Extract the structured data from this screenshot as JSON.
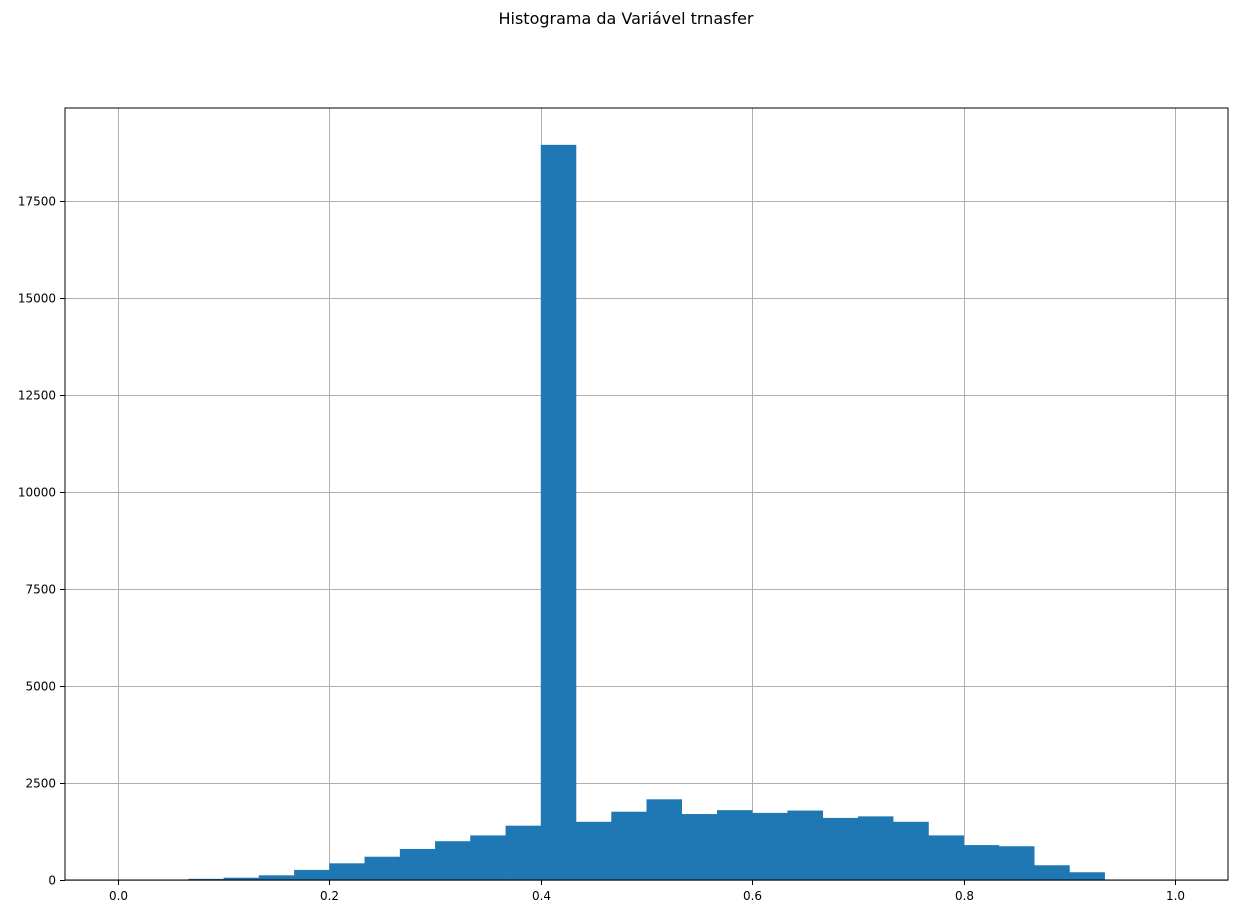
{
  "chart_data": {
    "type": "bar",
    "title": "Histograma da Variável trnasfer",
    "xlabel": "",
    "ylabel": "",
    "xlim": [
      -0.05,
      1.05
    ],
    "ylim": [
      0,
      19900
    ],
    "grid": true,
    "bar_color": "#1f77b4",
    "grid_color": "#b0b0b0",
    "bin_edges": [
      0.0,
      0.0333,
      0.0667,
      0.1,
      0.1333,
      0.1667,
      0.2,
      0.2333,
      0.2667,
      0.3,
      0.3333,
      0.3667,
      0.4,
      0.4333,
      0.4667,
      0.5,
      0.5333,
      0.5667,
      0.6,
      0.6333,
      0.6667,
      0.7,
      0.7333,
      0.7667,
      0.8,
      0.8333,
      0.8667,
      0.9,
      0.9333,
      0.9667,
      1.0
    ],
    "values": [
      5,
      10,
      30,
      60,
      120,
      260,
      430,
      600,
      800,
      1000,
      1150,
      1400,
      18950,
      1500,
      1760,
      2080,
      1700,
      1800,
      1730,
      1790,
      1600,
      1640,
      1500,
      1150,
      900,
      870,
      380,
      200,
      8,
      5
    ],
    "x_ticks": [
      0.0,
      0.2,
      0.4,
      0.6,
      0.8,
      1.0
    ],
    "x_tick_labels": [
      "0.0",
      "0.2",
      "0.4",
      "0.6",
      "0.8",
      "1.0"
    ],
    "y_ticks": [
      0,
      2500,
      5000,
      7500,
      10000,
      12500,
      15000,
      17500
    ],
    "y_tick_labels": [
      "0",
      "2500",
      "5000",
      "7500",
      "10000",
      "12500",
      "15000",
      "17500"
    ]
  }
}
